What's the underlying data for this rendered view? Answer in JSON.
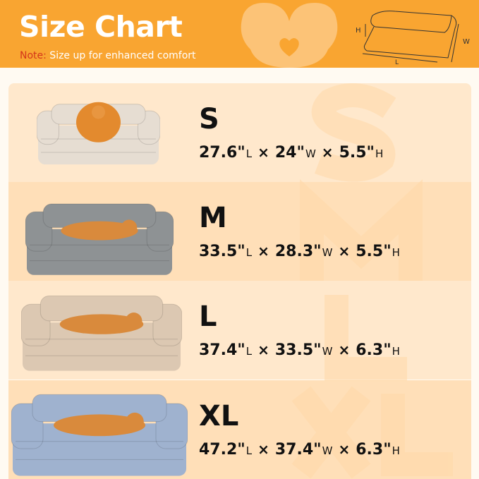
{
  "header": {
    "title": "Size Chart",
    "note_label": "Note:",
    "note_text": " Size up for enhanced comfort",
    "diagram_labels": {
      "h": "H",
      "w": "W",
      "l": "L"
    },
    "color": "#f9a531"
  },
  "sizes": [
    {
      "size": "S",
      "length": "27.6\"",
      "width": "24\"",
      "height": "5.5\"",
      "bed_color": "#e6ddd2",
      "dog": "pomeranian"
    },
    {
      "size": "M",
      "length": "33.5\"",
      "width": "28.3\"",
      "height": "5.5\"",
      "bed_color": "#8e9294",
      "dog": "shiba-inu"
    },
    {
      "size": "L",
      "length": "37.4\"",
      "width": "33.5\"",
      "height": "6.3\"",
      "bed_color": "#dcc8b2",
      "dog": "shiba-inu"
    },
    {
      "size": "XL",
      "length": "47.2\"",
      "width": "37.4\"",
      "height": "6.3\"",
      "bed_color": "#9fb2cf",
      "dog": "shiba-inu"
    }
  ],
  "units": {
    "l": "L",
    "w": "W",
    "h": "H",
    "times": "×"
  }
}
